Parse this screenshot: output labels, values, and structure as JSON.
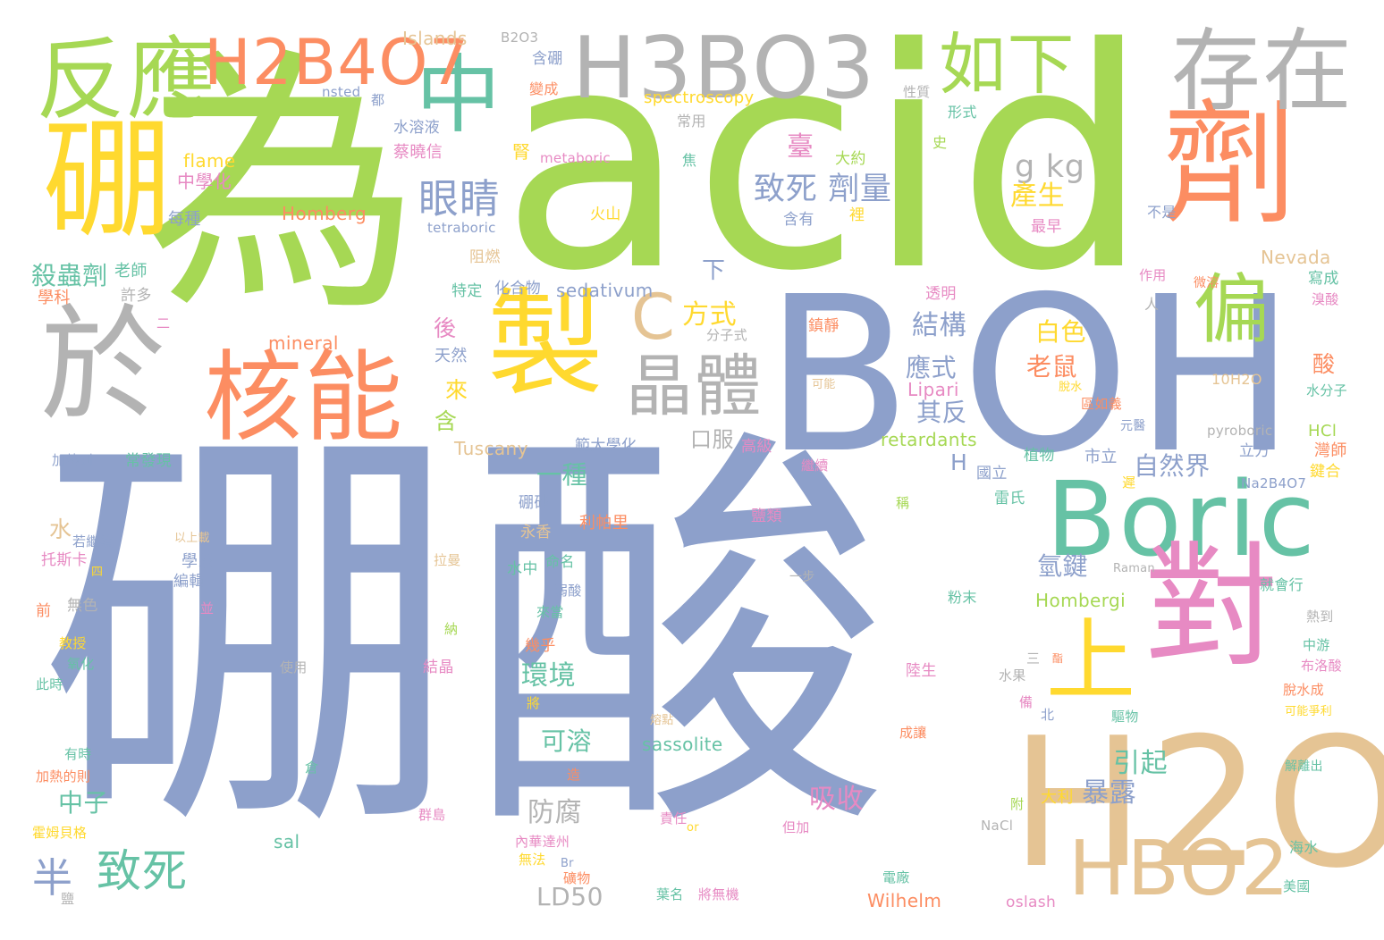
{
  "palette": {
    "blue": "#8da0cb",
    "green": "#a6d854",
    "orange": "#fc8d62",
    "teal": "#66c2a5",
    "yellow": "#ffd92f",
    "tan": "#e5c494",
    "gray": "#b3b3b3",
    "pink": "#e78ac3"
  },
  "words": [
    {
      "text": "硼酸",
      "color": "blue"
    },
    {
      "text": "acid",
      "color": "green"
    },
    {
      "text": "為",
      "color": "green"
    },
    {
      "text": "B",
      "color": "blue"
    },
    {
      "text": "OH",
      "color": "blue"
    },
    {
      "text": "H2O",
      "color": "tan"
    },
    {
      "text": "Boric",
      "color": "teal"
    },
    {
      "text": "H3BO3",
      "color": "gray"
    },
    {
      "text": "製",
      "color": "yellow"
    },
    {
      "text": "對",
      "color": "pink"
    },
    {
      "text": "劑",
      "color": "orange"
    },
    {
      "text": "核能",
      "color": "orange"
    },
    {
      "text": "於",
      "color": "gray"
    },
    {
      "text": "硼",
      "color": "yellow"
    },
    {
      "text": "反應",
      "color": "green"
    },
    {
      "text": "存在",
      "color": "gray"
    },
    {
      "text": "中",
      "color": "teal"
    },
    {
      "text": "H2B4O7",
      "color": "orange"
    },
    {
      "text": "HBO2",
      "color": "tan"
    },
    {
      "text": "晶體",
      "color": "gray"
    },
    {
      "text": "上",
      "color": "yellow"
    },
    {
      "text": "偏",
      "color": "green"
    },
    {
      "text": "如下",
      "color": "green"
    },
    {
      "text": "•",
      "color": "green"
    },
    {
      "text": "眼睛",
      "color": "blue"
    },
    {
      "text": "C",
      "color": "tan"
    },
    {
      "text": "致死",
      "color": "teal"
    },
    {
      "text": "半",
      "color": "blue"
    },
    {
      "text": "致死 劑量",
      "color": "blue"
    },
    {
      "text": "g kg",
      "color": "gray"
    },
    {
      "text": "產生",
      "color": "yellow"
    },
    {
      "text": "臺",
      "color": "pink"
    },
    {
      "text": "殺蟲劑",
      "color": "teal"
    },
    {
      "text": "方式",
      "color": "yellow"
    },
    {
      "text": "結構",
      "color": "blue"
    },
    {
      "text": "白色",
      "color": "yellow"
    },
    {
      "text": "老鼠",
      "color": "orange"
    },
    {
      "text": "應式",
      "color": "blue"
    },
    {
      "text": "其反",
      "color": "blue"
    },
    {
      "text": "自然界",
      "color": "blue"
    },
    {
      "text": "吸收",
      "color": "pink"
    },
    {
      "text": "防腐",
      "color": "gray"
    },
    {
      "text": "暴露",
      "color": "blue"
    },
    {
      "text": "引起",
      "color": "teal"
    },
    {
      "text": "可溶",
      "color": "teal"
    },
    {
      "text": "中子",
      "color": "teal"
    },
    {
      "text": "環境",
      "color": "teal"
    },
    {
      "text": "一種",
      "color": "teal"
    },
    {
      "text": "氫鍵",
      "color": "blue"
    },
    {
      "text": "口服",
      "color": "gray"
    },
    {
      "text": "後",
      "color": "pink"
    },
    {
      "text": "來",
      "color": "yellow"
    },
    {
      "text": "含",
      "color": "green"
    },
    {
      "text": "下",
      "color": "blue"
    },
    {
      "text": "H",
      "color": "blue"
    },
    {
      "text": "酸",
      "color": "orange"
    },
    {
      "text": "水",
      "color": "tan"
    },
    {
      "text": "LD50",
      "color": "gray"
    },
    {
      "text": "Homberg",
      "color": "orange"
    },
    {
      "text": "Hombergi",
      "color": "green"
    },
    {
      "text": "sassolite",
      "color": "teal"
    },
    {
      "text": "Tuscany",
      "color": "tan"
    },
    {
      "text": "retardants",
      "color": "green"
    },
    {
      "text": "Lipari",
      "color": "pink"
    },
    {
      "text": "Wilhelm",
      "color": "orange"
    },
    {
      "text": "flame",
      "color": "yellow"
    },
    {
      "text": "mineral",
      "color": "orange"
    },
    {
      "text": "sedativum",
      "color": "blue"
    },
    {
      "text": "Islands",
      "color": "tan"
    },
    {
      "text": "Nevada",
      "color": "tan"
    },
    {
      "text": "spectroscopy",
      "color": "yellow"
    },
    {
      "text": "metaboric",
      "color": "pink"
    },
    {
      "text": "tetraboric",
      "color": "blue"
    },
    {
      "text": "pyroboric",
      "color": "gray"
    },
    {
      "text": "sal",
      "color": "teal"
    },
    {
      "text": "oslash",
      "color": "pink"
    },
    {
      "text": "10H2O",
      "color": "tan"
    },
    {
      "text": "Na2B4O7",
      "color": "blue"
    },
    {
      "text": "B2O3",
      "color": "gray"
    },
    {
      "text": "nsted",
      "color": "blue"
    },
    {
      "text": "HCl",
      "color": "green"
    },
    {
      "text": "NaCl",
      "color": "gray"
    },
    {
      "text": "Br",
      "color": "blue"
    },
    {
      "text": "or",
      "color": "yellow"
    },
    {
      "text": "Raman",
      "color": "gray"
    },
    {
      "text": "中學化",
      "color": "pink"
    },
    {
      "text": "每種",
      "color": "blue"
    },
    {
      "text": "蔡曉信",
      "color": "pink"
    },
    {
      "text": "水溶液",
      "color": "blue"
    },
    {
      "text": "含硼",
      "color": "blue"
    },
    {
      "text": "變成",
      "color": "orange"
    },
    {
      "text": "常用",
      "color": "gray"
    },
    {
      "text": "焦",
      "color": "teal"
    },
    {
      "text": "大約",
      "color": "green"
    },
    {
      "text": "火山",
      "color": "yellow"
    },
    {
      "text": "含有",
      "color": "blue"
    },
    {
      "text": "裡",
      "color": "yellow"
    },
    {
      "text": "最早",
      "color": "pink"
    },
    {
      "text": "不是",
      "color": "blue"
    },
    {
      "text": "史",
      "color": "green"
    },
    {
      "text": "形式",
      "color": "teal"
    },
    {
      "text": "性質",
      "color": "gray"
    },
    {
      "text": "都",
      "color": "blue"
    },
    {
      "text": "腎",
      "color": "yellow"
    },
    {
      "text": "阻燃",
      "color": "tan"
    },
    {
      "text": "特定",
      "color": "teal"
    },
    {
      "text": "化合物",
      "color": "blue"
    },
    {
      "text": "老師",
      "color": "teal"
    },
    {
      "text": "許多",
      "color": "gray"
    },
    {
      "text": "學科",
      "color": "orange"
    },
    {
      "text": "二",
      "color": "pink"
    },
    {
      "text": "天然",
      "color": "blue"
    },
    {
      "text": "分子式",
      "color": "gray"
    },
    {
      "text": "鎮靜",
      "color": "orange"
    },
    {
      "text": "透明",
      "color": "pink"
    },
    {
      "text": "人",
      "color": "gray"
    },
    {
      "text": "作用",
      "color": "pink"
    },
    {
      "text": "微溶",
      "color": "orange"
    },
    {
      "text": "寫成",
      "color": "teal"
    },
    {
      "text": "溴酸",
      "color": "pink"
    },
    {
      "text": "可能",
      "color": "tan"
    },
    {
      "text": "脫水",
      "color": "yellow"
    },
    {
      "text": "區如義",
      "color": "orange"
    },
    {
      "text": "水分子",
      "color": "teal"
    },
    {
      "text": "元醫",
      "color": "blue"
    },
    {
      "text": "立方",
      "color": "blue"
    },
    {
      "text": "灣師",
      "color": "orange"
    },
    {
      "text": "鍵合",
      "color": "yellow"
    },
    {
      "text": "範大學化",
      "color": "blue"
    },
    {
      "text": "高級",
      "color": "pink"
    },
    {
      "text": "繼續",
      "color": "pink"
    },
    {
      "text": "植物",
      "color": "teal"
    },
    {
      "text": "市立",
      "color": "blue"
    },
    {
      "text": "國立",
      "color": "blue"
    },
    {
      "text": "遲",
      "color": "yellow"
    },
    {
      "text": "加熱到",
      "color": "blue"
    },
    {
      "text": "常發現",
      "color": "teal"
    },
    {
      "text": "雷氏",
      "color": "teal"
    },
    {
      "text": "稱",
      "color": "green"
    },
    {
      "text": "硼砂",
      "color": "blue"
    },
    {
      "text": "利帕里",
      "color": "orange"
    },
    {
      "text": "鹽類",
      "color": "pink"
    },
    {
      "text": "永香",
      "color": "tan"
    },
    {
      "text": "若繼續",
      "color": "blue"
    },
    {
      "text": "以上載",
      "color": "tan"
    },
    {
      "text": "托斯卡",
      "color": "pink"
    },
    {
      "text": "四",
      "color": "yellow"
    },
    {
      "text": "學系",
      "color": "blue"
    },
    {
      "text": "編輯",
      "color": "blue"
    },
    {
      "text": "拉曼",
      "color": "tan"
    },
    {
      "text": "命名",
      "color": "teal"
    },
    {
      "text": "水中",
      "color": "teal"
    },
    {
      "text": "弱酸",
      "color": "blue"
    },
    {
      "text": "來當",
      "color": "teal"
    },
    {
      "text": "一步",
      "color": "gray"
    },
    {
      "text": "粉末",
      "color": "teal"
    },
    {
      "text": "就會行",
      "color": "teal"
    },
    {
      "text": "熱到",
      "color": "gray"
    },
    {
      "text": "前",
      "color": "orange"
    },
    {
      "text": "無色",
      "color": "gray"
    },
    {
      "text": "並",
      "color": "pink"
    },
    {
      "text": "納",
      "color": "green"
    },
    {
      "text": "幾乎",
      "color": "orange"
    },
    {
      "text": "中游",
      "color": "teal"
    },
    {
      "text": "布洛酸",
      "color": "pink"
    },
    {
      "text": "脫水成",
      "color": "orange"
    },
    {
      "text": "可能爭利",
      "color": "yellow"
    },
    {
      "text": "教授",
      "color": "yellow"
    },
    {
      "text": "氧化",
      "color": "teal"
    },
    {
      "text": "使用",
      "color": "gray"
    },
    {
      "text": "結晶",
      "color": "pink"
    },
    {
      "text": "三",
      "color": "gray"
    },
    {
      "text": "酯",
      "color": "orange"
    },
    {
      "text": "陸生",
      "color": "pink"
    },
    {
      "text": "此時",
      "color": "teal"
    },
    {
      "text": "將",
      "color": "yellow"
    },
    {
      "text": "水果",
      "color": "gray"
    },
    {
      "text": "備",
      "color": "pink"
    },
    {
      "text": "北",
      "color": "blue"
    },
    {
      "text": "驅物",
      "color": "teal"
    },
    {
      "text": "熔點",
      "color": "tan"
    },
    {
      "text": "成讓",
      "color": "orange"
    },
    {
      "text": "有時",
      "color": "teal"
    },
    {
      "text": "加熱的則",
      "color": "orange"
    },
    {
      "text": "倉",
      "color": "teal"
    },
    {
      "text": "造",
      "color": "orange"
    },
    {
      "text": "解離出",
      "color": "teal"
    },
    {
      "text": "群島",
      "color": "pink"
    },
    {
      "text": "責任",
      "color": "pink"
    },
    {
      "text": "附",
      "color": "green"
    },
    {
      "text": "大利",
      "color": "yellow"
    },
    {
      "text": "霍姆貝格",
      "color": "yellow"
    },
    {
      "text": "但加",
      "color": "pink"
    },
    {
      "text": "海水",
      "color": "teal"
    },
    {
      "text": "內華達州",
      "color": "pink"
    },
    {
      "text": "無法",
      "color": "yellow"
    },
    {
      "text": "礦物",
      "color": "orange"
    },
    {
      "text": "電廠",
      "color": "teal"
    },
    {
      "text": "美國",
      "color": "teal"
    },
    {
      "text": "葉名",
      "color": "teal"
    },
    {
      "text": "將無機",
      "color": "pink"
    },
    {
      "text": "鹽",
      "color": "gray"
    }
  ]
}
